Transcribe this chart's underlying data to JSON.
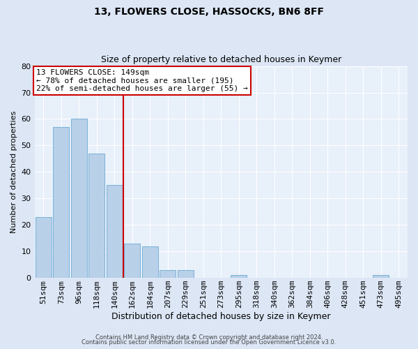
{
  "title1": "13, FLOWERS CLOSE, HASSOCKS, BN6 8FF",
  "title2": "Size of property relative to detached houses in Keymer",
  "xlabel": "Distribution of detached houses by size in Keymer",
  "ylabel": "Number of detached properties",
  "bar_labels": [
    "51sqm",
    "73sqm",
    "96sqm",
    "118sqm",
    "140sqm",
    "162sqm",
    "184sqm",
    "207sqm",
    "229sqm",
    "251sqm",
    "273sqm",
    "295sqm",
    "318sqm",
    "340sqm",
    "362sqm",
    "384sqm",
    "406sqm",
    "428sqm",
    "451sqm",
    "473sqm",
    "495sqm"
  ],
  "bar_values": [
    23,
    57,
    60,
    47,
    35,
    13,
    12,
    3,
    3,
    0,
    0,
    1,
    0,
    0,
    0,
    0,
    0,
    0,
    0,
    1,
    0
  ],
  "bar_color": "#b8d0e8",
  "bar_edgecolor": "#6aaad4",
  "vline_x_idx": 4.5,
  "vline_color": "#cc0000",
  "annotation_line1": "13 FLOWERS CLOSE: 149sqm",
  "annotation_line2": "← 78% of detached houses are smaller (195)",
  "annotation_line3": "22% of semi-detached houses are larger (55) →",
  "annotation_box_facecolor": "#ffffff",
  "annotation_box_edgecolor": "#cc0000",
  "ylim": [
    0,
    80
  ],
  "yticks": [
    0,
    10,
    20,
    30,
    40,
    50,
    60,
    70,
    80
  ],
  "footer1": "Contains HM Land Registry data © Crown copyright and database right 2024.",
  "footer2": "Contains public sector information licensed under the Open Government Licence v3.0.",
  "fig_bg_color": "#dce6f5",
  "plot_bg_color": "#e8f0fa",
  "grid_color": "#ffffff",
  "title1_fontsize": 10,
  "title2_fontsize": 9,
  "xlabel_fontsize": 9,
  "ylabel_fontsize": 8,
  "tick_fontsize": 8,
  "footer_fontsize": 6,
  "annot_fontsize": 8
}
